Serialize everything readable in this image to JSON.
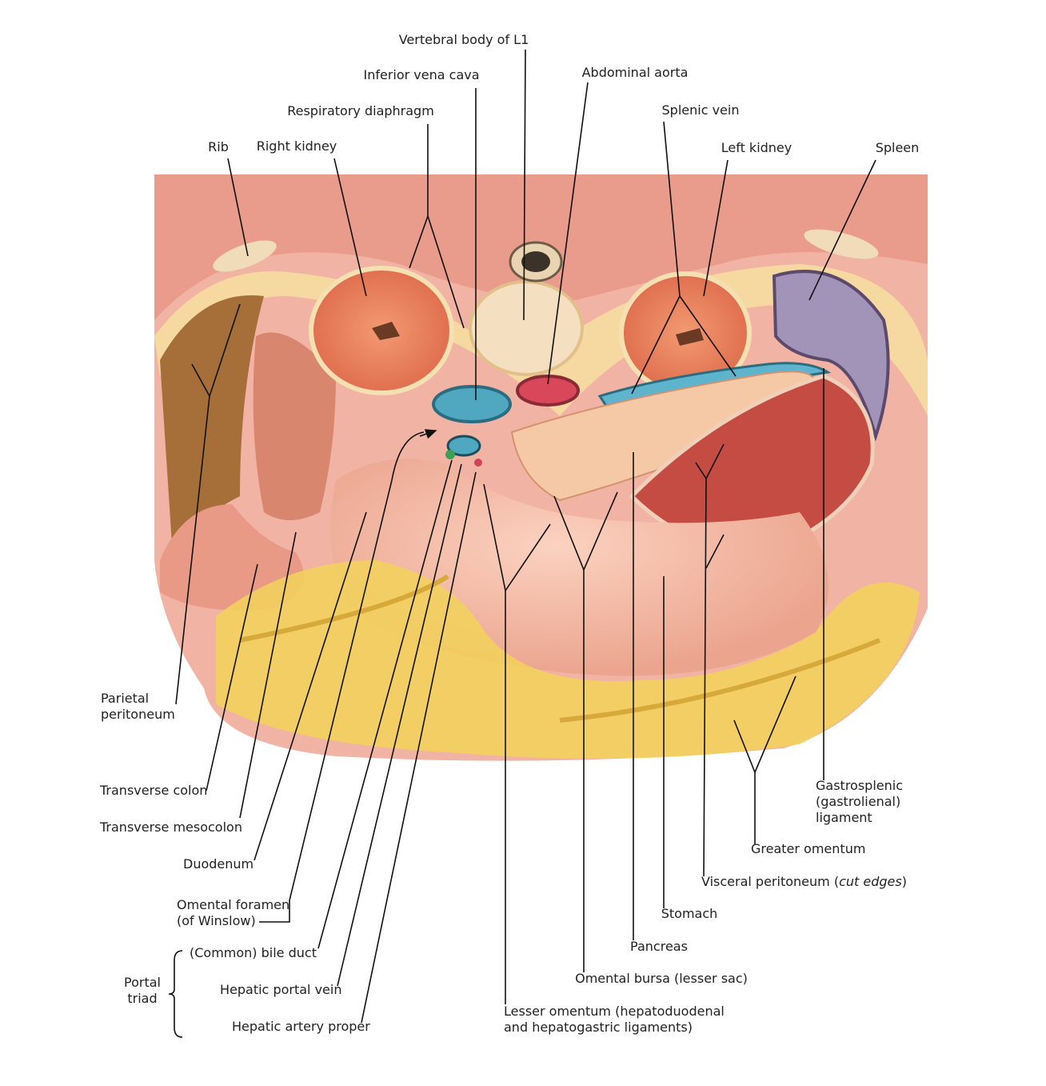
{
  "labels": [
    {
      "lines": [
        "Vertebral body of L1"
      ]
    },
    {
      "lines": [
        "Inferior vena cava"
      ]
    },
    {
      "lines": [
        "Abdominal aorta"
      ]
    },
    {
      "lines": [
        "Respiratory diaphragm"
      ]
    },
    {
      "lines": [
        "Rib"
      ]
    },
    {
      "lines": [
        "Right kidney"
      ]
    },
    {
      "lines": [
        "Splenic vein"
      ]
    },
    {
      "lines": [
        "Left kidney"
      ]
    },
    {
      "lines": [
        "Spleen"
      ]
    },
    {
      "lines": [
        "Parietal",
        "peritoneum"
      ]
    },
    {
      "lines": [
        "Transverse colon"
      ]
    },
    {
      "lines": [
        "Transverse mesocolon"
      ]
    },
    {
      "lines": [
        "Duodenum"
      ]
    },
    {
      "lines": [
        "Omental foramen",
        "(of Winslow)"
      ]
    },
    {
      "lines": [
        "Portal",
        "triad"
      ]
    },
    {
      "lines": [
        "(Common) bile duct"
      ]
    },
    {
      "lines": [
        "Hepatic portal vein"
      ]
    },
    {
      "lines": [
        "Hepatic artery proper"
      ]
    },
    {
      "lines": [
        "Lesser omentum (hepatoduodenal",
        "and hepatogastric ligaments)"
      ]
    },
    {
      "lines": [
        "Omental bursa (lesser sac)"
      ]
    },
    {
      "lines": [
        "Pancreas"
      ]
    },
    {
      "lines": [
        "Stomach"
      ]
    },
    {
      "parts": [
        "Visceral peritoneum (",
        "cut edges",
        ")"
      ]
    },
    {
      "lines": [
        "Greater omentum"
      ]
    },
    {
      "lines": [
        "Gastrosplenic",
        "(gastrolienal)",
        "ligament"
      ]
    }
  ]
}
